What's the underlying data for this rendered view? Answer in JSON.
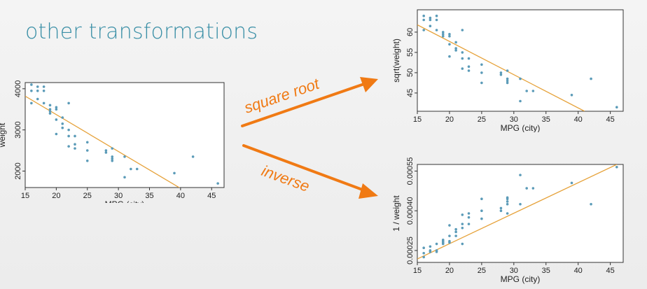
{
  "slide": {
    "title": "other transformations"
  },
  "arrows": [
    {
      "label": "square root",
      "color": "#f07a14"
    },
    {
      "label": "inverse",
      "color": "#f07a14"
    }
  ],
  "colors": {
    "point": "#5b9bb8",
    "line": "#e6a23a",
    "frame": "#333333"
  },
  "chart_data": [
    {
      "type": "scatter",
      "xlabel": "MPG (city)",
      "ylabel": "weight",
      "xlim": [
        15,
        47
      ],
      "ylim": [
        1600,
        4150
      ],
      "xticks": [
        15,
        20,
        25,
        30,
        35,
        40,
        45
      ],
      "yticks": [
        2000,
        3000,
        4000
      ],
      "ytick_labels": [
        "2000",
        "3000",
        "4000"
      ],
      "points": [
        [
          16,
          4100
        ],
        [
          16,
          3950
        ],
        [
          16,
          3650
        ],
        [
          17,
          4050
        ],
        [
          17,
          3950
        ],
        [
          17,
          3750
        ],
        [
          18,
          4050
        ],
        [
          18,
          3950
        ],
        [
          18,
          3650
        ],
        [
          19,
          3600
        ],
        [
          19,
          3500
        ],
        [
          19,
          3450
        ],
        [
          19,
          3400
        ],
        [
          20,
          3550
        ],
        [
          20,
          3500
        ],
        [
          20,
          3250
        ],
        [
          20,
          2900
        ],
        [
          21,
          3300
        ],
        [
          21,
          3150
        ],
        [
          21,
          3050
        ],
        [
          22,
          3650
        ],
        [
          22,
          3000
        ],
        [
          22,
          2850
        ],
        [
          22,
          2600
        ],
        [
          23,
          2850
        ],
        [
          23,
          2650
        ],
        [
          23,
          2550
        ],
        [
          25,
          2700
        ],
        [
          25,
          2500
        ],
        [
          25,
          2250
        ],
        [
          28,
          2500
        ],
        [
          28,
          2450
        ],
        [
          29,
          2550
        ],
        [
          29,
          2350
        ],
        [
          29,
          2300
        ],
        [
          29,
          2250
        ],
        [
          31,
          2350
        ],
        [
          31,
          1850
        ],
        [
          32,
          2050
        ],
        [
          33,
          2050
        ],
        [
          39,
          1950
        ],
        [
          42,
          2350
        ],
        [
          46,
          1700
        ]
      ],
      "fit_line": [
        [
          15,
          3820
        ],
        [
          40,
          1580
        ]
      ]
    },
    {
      "type": "scatter",
      "xlabel": "MPG (city)",
      "ylabel": "sqrt(weight)",
      "xlim": [
        15,
        47
      ],
      "ylim": [
        40.5,
        65.5
      ],
      "xticks": [
        15,
        20,
        25,
        30,
        35,
        40,
        45
      ],
      "yticks": [
        45,
        50,
        55,
        60
      ],
      "ytick_labels": [
        "45",
        "50",
        "55",
        "60"
      ],
      "points": [
        [
          16,
          64
        ],
        [
          16,
          63
        ],
        [
          16,
          60.5
        ],
        [
          17,
          63.5
        ],
        [
          17,
          63
        ],
        [
          17,
          61.5
        ],
        [
          18,
          64
        ],
        [
          18,
          63
        ],
        [
          18,
          60.5
        ],
        [
          19,
          60
        ],
        [
          19,
          59.5
        ],
        [
          19,
          59
        ],
        [
          20,
          59.5
        ],
        [
          20,
          59
        ],
        [
          20,
          57
        ],
        [
          20,
          54
        ],
        [
          21,
          57.5
        ],
        [
          21,
          56
        ],
        [
          21,
          55.5
        ],
        [
          22,
          60.5
        ],
        [
          22,
          55
        ],
        [
          22,
          53.5
        ],
        [
          22,
          51
        ],
        [
          23,
          53.5
        ],
        [
          23,
          51.5
        ],
        [
          23,
          50.5
        ],
        [
          25,
          52
        ],
        [
          25,
          50
        ],
        [
          25,
          47.5
        ],
        [
          28,
          50
        ],
        [
          28,
          49.5
        ],
        [
          29,
          50.5
        ],
        [
          29,
          48.5
        ],
        [
          29,
          48
        ],
        [
          29,
          47.5
        ],
        [
          31,
          48.5
        ],
        [
          31,
          43
        ],
        [
          32,
          45.5
        ],
        [
          33,
          45.5
        ],
        [
          39,
          44.5
        ],
        [
          42,
          48.5
        ],
        [
          46,
          41.5
        ]
      ],
      "fit_line": [
        [
          15,
          61.8
        ],
        [
          41,
          40.5
        ]
      ]
    },
    {
      "type": "scatter",
      "xlabel": "MPG (city)",
      "ylabel": "1 / weight",
      "xlim": [
        15,
        47
      ],
      "ylim": [
        0.000205,
        0.000575
      ],
      "xticks": [
        15,
        20,
        25,
        30,
        35,
        40,
        45
      ],
      "yticks": [
        0.00025,
        0.0004,
        0.00055
      ],
      "ytick_labels": [
        "0.00025",
        "0.00040",
        "0.00055"
      ],
      "points": [
        [
          16,
          0.00024
        ],
        [
          16,
          0.000225
        ],
        [
          16,
          0.00026
        ],
        [
          17,
          0.000245
        ],
        [
          17,
          0.00025
        ],
        [
          17,
          0.000265
        ],
        [
          18,
          0.000245
        ],
        [
          18,
          0.00025
        ],
        [
          18,
          0.000275
        ],
        [
          19,
          0.000275
        ],
        [
          19,
          0.00028
        ],
        [
          19,
          0.000285
        ],
        [
          19,
          0.00029
        ],
        [
          20,
          0.00028
        ],
        [
          20,
          0.000285
        ],
        [
          20,
          0.000305
        ],
        [
          20,
          0.000345
        ],
        [
          21,
          0.000305
        ],
        [
          21,
          0.00032
        ],
        [
          21,
          0.00033
        ],
        [
          22,
          0.000275
        ],
        [
          22,
          0.000335
        ],
        [
          22,
          0.00035
        ],
        [
          22,
          0.000385
        ],
        [
          23,
          0.00035
        ],
        [
          23,
          0.000375
        ],
        [
          23,
          0.00039
        ],
        [
          25,
          0.00037
        ],
        [
          25,
          0.0004
        ],
        [
          25,
          0.000445
        ],
        [
          28,
          0.0004
        ],
        [
          28,
          0.00041
        ],
        [
          29,
          0.00039
        ],
        [
          29,
          0.000425
        ],
        [
          29,
          0.000435
        ],
        [
          29,
          0.000445
        ],
        [
          29,
          0.00045
        ],
        [
          31,
          0.000425
        ],
        [
          31,
          0.000535
        ],
        [
          32,
          0.000485
        ],
        [
          33,
          0.000485
        ],
        [
          39,
          0.000505
        ],
        [
          42,
          0.000425
        ],
        [
          46,
          0.000565
        ]
      ],
      "fit_line": [
        [
          15,
          0.000218
        ],
        [
          46,
          0.000575
        ]
      ]
    }
  ]
}
